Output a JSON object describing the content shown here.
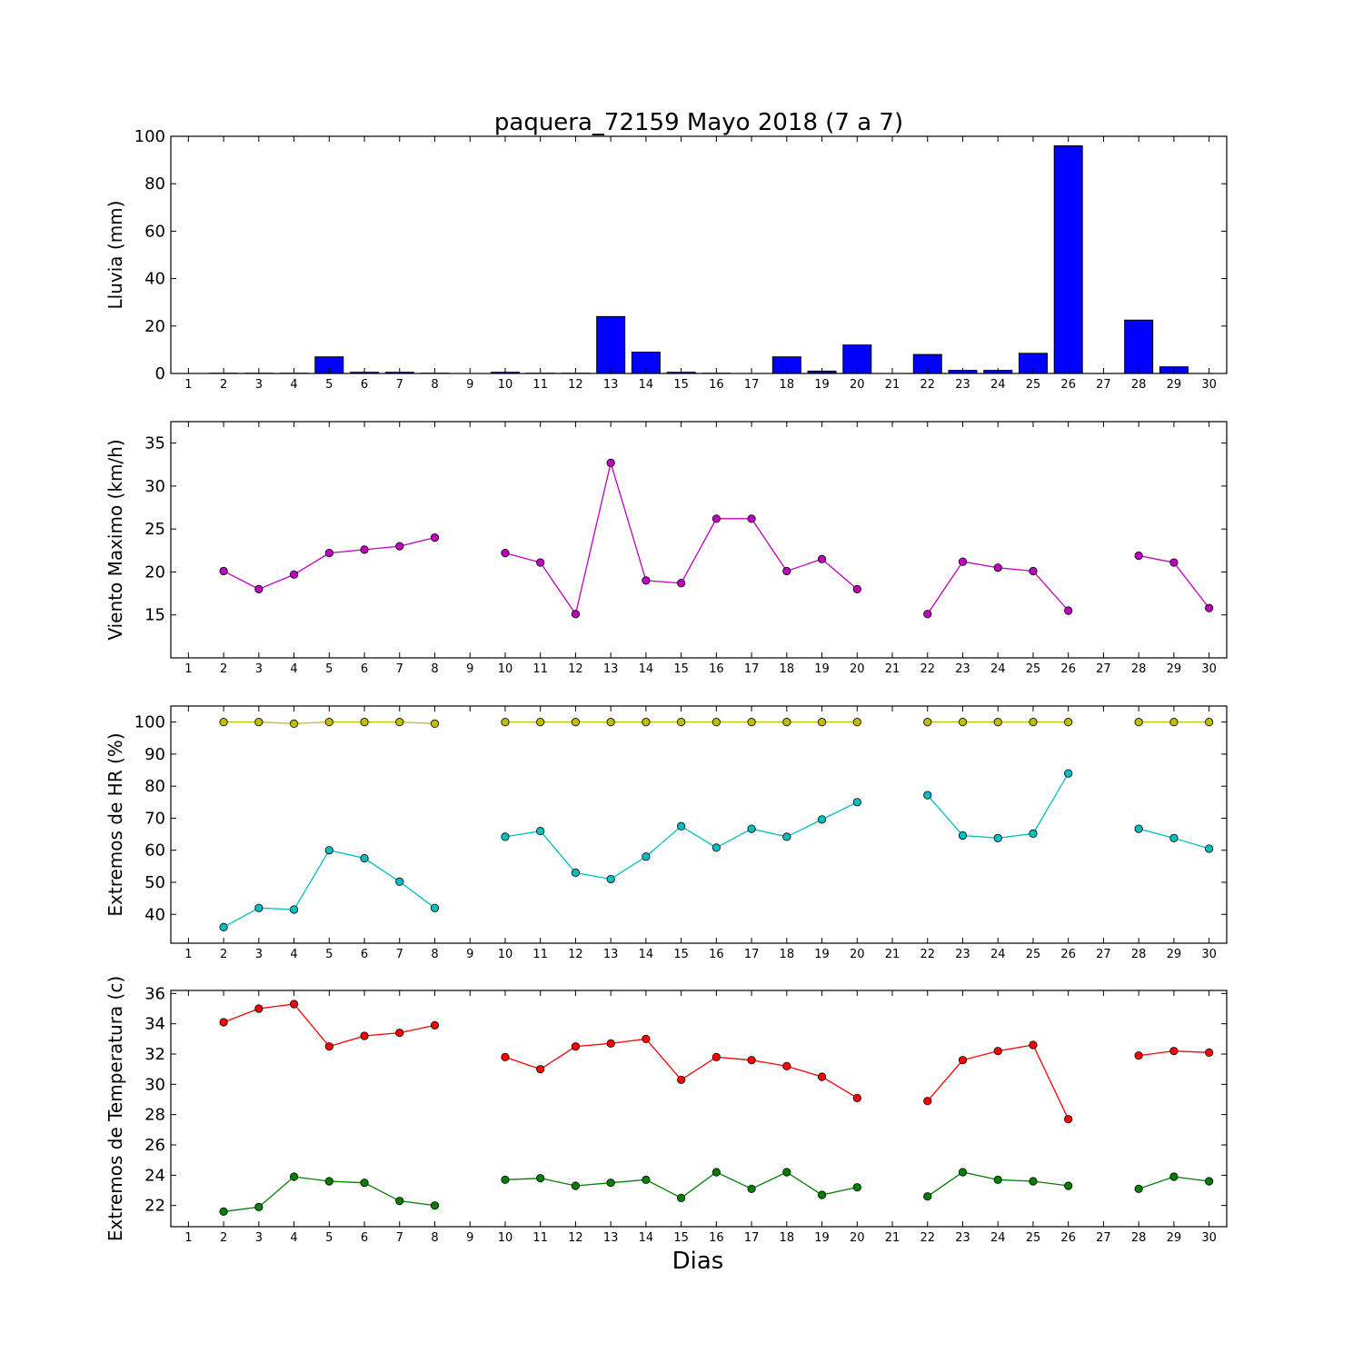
{
  "figure_title": "paquera_72159 Mayo 2018  (7 a 7)",
  "x_axis_label": "Dias",
  "colors": {
    "rain": "#0000ff",
    "wind": "#bf00bf",
    "hr_max": "#bfbf00",
    "hr_min": "#00bfbf",
    "temp_max": "#ff0000",
    "temp_min": "#007f00"
  },
  "chart_data": [
    {
      "type": "bar",
      "ylabel": "Lluvia (mm)",
      "ylim": [
        0,
        100
      ],
      "yticks": [
        0,
        20,
        40,
        60,
        80,
        100
      ],
      "xlim": [
        0.5,
        30.5
      ],
      "categories": [
        1,
        2,
        3,
        4,
        5,
        6,
        7,
        8,
        9,
        10,
        11,
        12,
        13,
        14,
        15,
        16,
        17,
        18,
        19,
        20,
        21,
        22,
        23,
        24,
        25,
        26,
        27,
        28,
        29,
        30
      ],
      "values": [
        0,
        0.1,
        0.1,
        0.1,
        7,
        0.5,
        0.5,
        0.1,
        0,
        0.5,
        0.1,
        0.1,
        24,
        9,
        0.5,
        0.1,
        0,
        7,
        1,
        12,
        0,
        8,
        1.3,
        1.3,
        8.5,
        96,
        0,
        22.5,
        2.8,
        0
      ],
      "series": [
        {
          "values": [
            0,
            0.1,
            0.1,
            0.1,
            7,
            0.5,
            0.5,
            0.1,
            0,
            0.5,
            0.1,
            0.1,
            24,
            9,
            0.5,
            0.1,
            0,
            7,
            1,
            12,
            0,
            8,
            1.3,
            1.3,
            8.5,
            96,
            0,
            22.5,
            2.8,
            0
          ],
          "color": "#0000ff"
        }
      ]
    },
    {
      "type": "line",
      "ylabel": "Viento Maximo (km/h)",
      "ylim": [
        10,
        37.5
      ],
      "yticks": [
        15,
        20,
        25,
        30,
        35
      ],
      "xlim": [
        0.5,
        30.5
      ],
      "categories": [
        1,
        2,
        3,
        4,
        5,
        6,
        7,
        8,
        9,
        10,
        11,
        12,
        13,
        14,
        15,
        16,
        17,
        18,
        19,
        20,
        21,
        22,
        23,
        24,
        25,
        26,
        27,
        28,
        29,
        30
      ],
      "series": [
        {
          "color": "#bf00bf",
          "values": [
            null,
            20.1,
            18,
            19.7,
            22.2,
            22.6,
            23,
            24,
            null,
            22.2,
            21.1,
            15.1,
            32.7,
            19,
            18.7,
            26.2,
            26.2,
            20.1,
            21.5,
            18,
            null,
            15.1,
            21.2,
            20.5,
            20.1,
            15.5,
            null,
            21.9,
            21.1,
            15.8
          ]
        }
      ]
    },
    {
      "type": "line",
      "ylabel": "Extremos de HR (%)",
      "ylim": [
        31,
        105
      ],
      "yticks": [
        40,
        50,
        60,
        70,
        80,
        90,
        100
      ],
      "xlim": [
        0.5,
        30.5
      ],
      "categories": [
        1,
        2,
        3,
        4,
        5,
        6,
        7,
        8,
        9,
        10,
        11,
        12,
        13,
        14,
        15,
        16,
        17,
        18,
        19,
        20,
        21,
        22,
        23,
        24,
        25,
        26,
        27,
        28,
        29,
        30
      ],
      "series": [
        {
          "color": "#bfbf00",
          "values": [
            null,
            100,
            100,
            99.5,
            100,
            100,
            100,
            99.5,
            null,
            100,
            100,
            100,
            100,
            100,
            100,
            100,
            100,
            100,
            100,
            100,
            null,
            100,
            100,
            100,
            100,
            100,
            null,
            100,
            100,
            100
          ]
        },
        {
          "color": "#00bfbf",
          "values": [
            null,
            36,
            42,
            41.5,
            60,
            57.5,
            50.2,
            42,
            null,
            64.2,
            66,
            53,
            51,
            58,
            67.5,
            60.8,
            66.7,
            64.2,
            69.6,
            75,
            null,
            77.2,
            64.6,
            63.8,
            65.2,
            84,
            null,
            66.7,
            63.8,
            60.5
          ]
        }
      ]
    },
    {
      "type": "line",
      "ylabel": "Extremos de Temperatura (c)",
      "ylim": [
        20.6,
        36.2
      ],
      "yticks": [
        22,
        24,
        26,
        28,
        30,
        32,
        34,
        36
      ],
      "xlim": [
        0.5,
        30.5
      ],
      "categories": [
        1,
        2,
        3,
        4,
        5,
        6,
        7,
        8,
        9,
        10,
        11,
        12,
        13,
        14,
        15,
        16,
        17,
        18,
        19,
        20,
        21,
        22,
        23,
        24,
        25,
        26,
        27,
        28,
        29,
        30
      ],
      "series": [
        {
          "color": "#ff0000",
          "values": [
            null,
            34.1,
            35,
            35.3,
            32.5,
            33.2,
            33.4,
            33.9,
            null,
            31.8,
            31,
            32.5,
            32.7,
            33,
            30.3,
            31.8,
            31.6,
            31.2,
            30.5,
            29.1,
            null,
            28.9,
            31.6,
            32.2,
            32.6,
            27.7,
            null,
            31.9,
            32.2,
            32.1
          ]
        },
        {
          "color": "#007f00",
          "values": [
            null,
            21.6,
            21.9,
            23.9,
            23.6,
            23.5,
            22.3,
            22,
            null,
            23.7,
            23.8,
            23.3,
            23.5,
            23.7,
            22.5,
            24.2,
            23.1,
            24.2,
            22.7,
            23.2,
            null,
            22.6,
            24.2,
            23.7,
            23.6,
            23.3,
            null,
            23.1,
            23.9,
            23.6
          ]
        }
      ]
    }
  ]
}
